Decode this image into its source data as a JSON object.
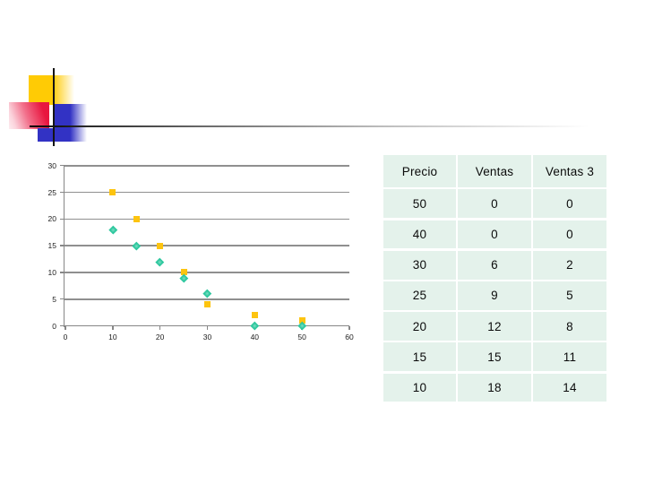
{
  "slide": {
    "background": "#ffffff",
    "decoration_colors": {
      "yellow_square": "#ffcb05",
      "red_square": "#e8163f",
      "blue_square": "#3232c4",
      "cross_lines": "#141414"
    }
  },
  "chart_data": {
    "type": "scatter",
    "title": "",
    "xlabel": "",
    "ylabel": "",
    "xlim": [
      0,
      60
    ],
    "ylim": [
      0,
      30
    ],
    "x_ticks": [
      0,
      10,
      20,
      30,
      40,
      50,
      60
    ],
    "y_ticks": [
      0,
      5,
      10,
      15,
      20,
      25,
      30
    ],
    "grid": "horizontal-gridlines",
    "legend": "none",
    "axis_color": "#878787",
    "gridline_color": "#8f8f8f",
    "series": [
      {
        "name": "yellow-squares",
        "marker": "square",
        "color": "#fdc40f",
        "points": [
          [
            10,
            25
          ],
          [
            15,
            20
          ],
          [
            20,
            15
          ],
          [
            25,
            10
          ],
          [
            30,
            4
          ],
          [
            40,
            2
          ],
          [
            50,
            1
          ]
        ]
      },
      {
        "name": "teal-diamonds",
        "marker": "diamond",
        "color": "#2dc79e",
        "points": [
          [
            10,
            18
          ],
          [
            15,
            15
          ],
          [
            20,
            12
          ],
          [
            25,
            9
          ],
          [
            30,
            6
          ],
          [
            40,
            0
          ],
          [
            50,
            0
          ]
        ]
      }
    ]
  },
  "table": {
    "headers": [
      "Precio",
      "Ventas",
      "Ventas 3"
    ],
    "rows": [
      [
        "50",
        "0",
        "0"
      ],
      [
        "40",
        "0",
        "0"
      ],
      [
        "30",
        "6",
        "2"
      ],
      [
        "25",
        "9",
        "5"
      ],
      [
        "20",
        "12",
        "8"
      ],
      [
        "15",
        "15",
        "11"
      ],
      [
        "10",
        "18",
        "14"
      ]
    ],
    "cell_background": "#e4f2eb",
    "text_color": "#0b0b0b"
  }
}
